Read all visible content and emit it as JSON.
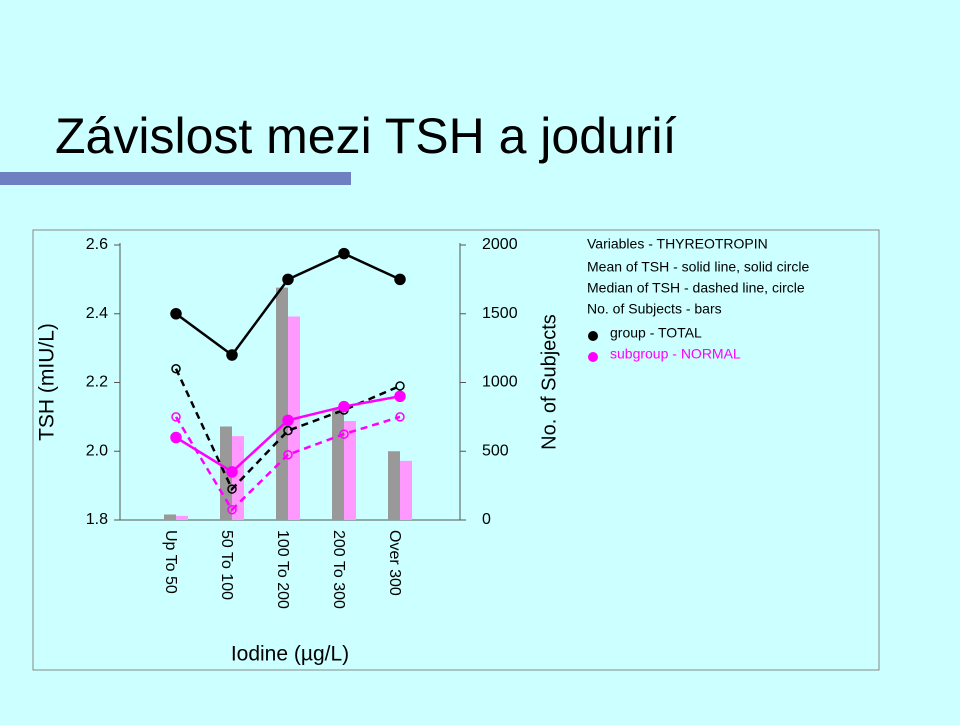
{
  "slide": {
    "title": "Závislost mezi TSH a jodurií"
  },
  "chart_data": {
    "type": "bar-line",
    "categories": [
      "Up To 50",
      "50 To 100",
      "100 To 200",
      "200 To 300",
      "Over 300"
    ],
    "x_label": "Iodine (µg/L)",
    "y_label": "TSH (mIU/L)",
    "y2_label": "No. of Subjects",
    "ylim": [
      1.8,
      2.6
    ],
    "yticks": [
      1.8,
      {
        "value": 2,
        "label": "2.0"
      },
      2.2,
      2.4,
      2.6
    ],
    "y2lim": [
      0,
      2000
    ],
    "y2ticks": [
      0,
      500,
      1000,
      1500,
      2000
    ],
    "legend": {
      "title": "Variables - THYREOTROPIN",
      "notes": [
        "Mean of TSH - solid line, solid circle",
        "Median of TSH - dashed line, circle",
        "No. of Subjects - bars"
      ]
    },
    "groups": [
      {
        "name": "group - TOTAL",
        "color": "#000000",
        "bar_color": "#999999",
        "mean": [
          2.4,
          2.28,
          2.5,
          2.575,
          2.5
        ],
        "median": [
          2.24,
          1.89,
          2.06,
          2.12,
          2.19
        ],
        "subjects": [
          40,
          680,
          1690,
          810,
          500
        ]
      },
      {
        "name": "subgroup - NORMAL",
        "color": "#ff00ff",
        "bar_color": "#ff99ff",
        "mean": [
          2.04,
          1.94,
          2.09,
          2.13,
          2.16
        ],
        "median": [
          2.1,
          1.83,
          1.99,
          2.05,
          2.1
        ],
        "subjects": [
          30,
          610,
          1480,
          720,
          430
        ]
      }
    ]
  }
}
